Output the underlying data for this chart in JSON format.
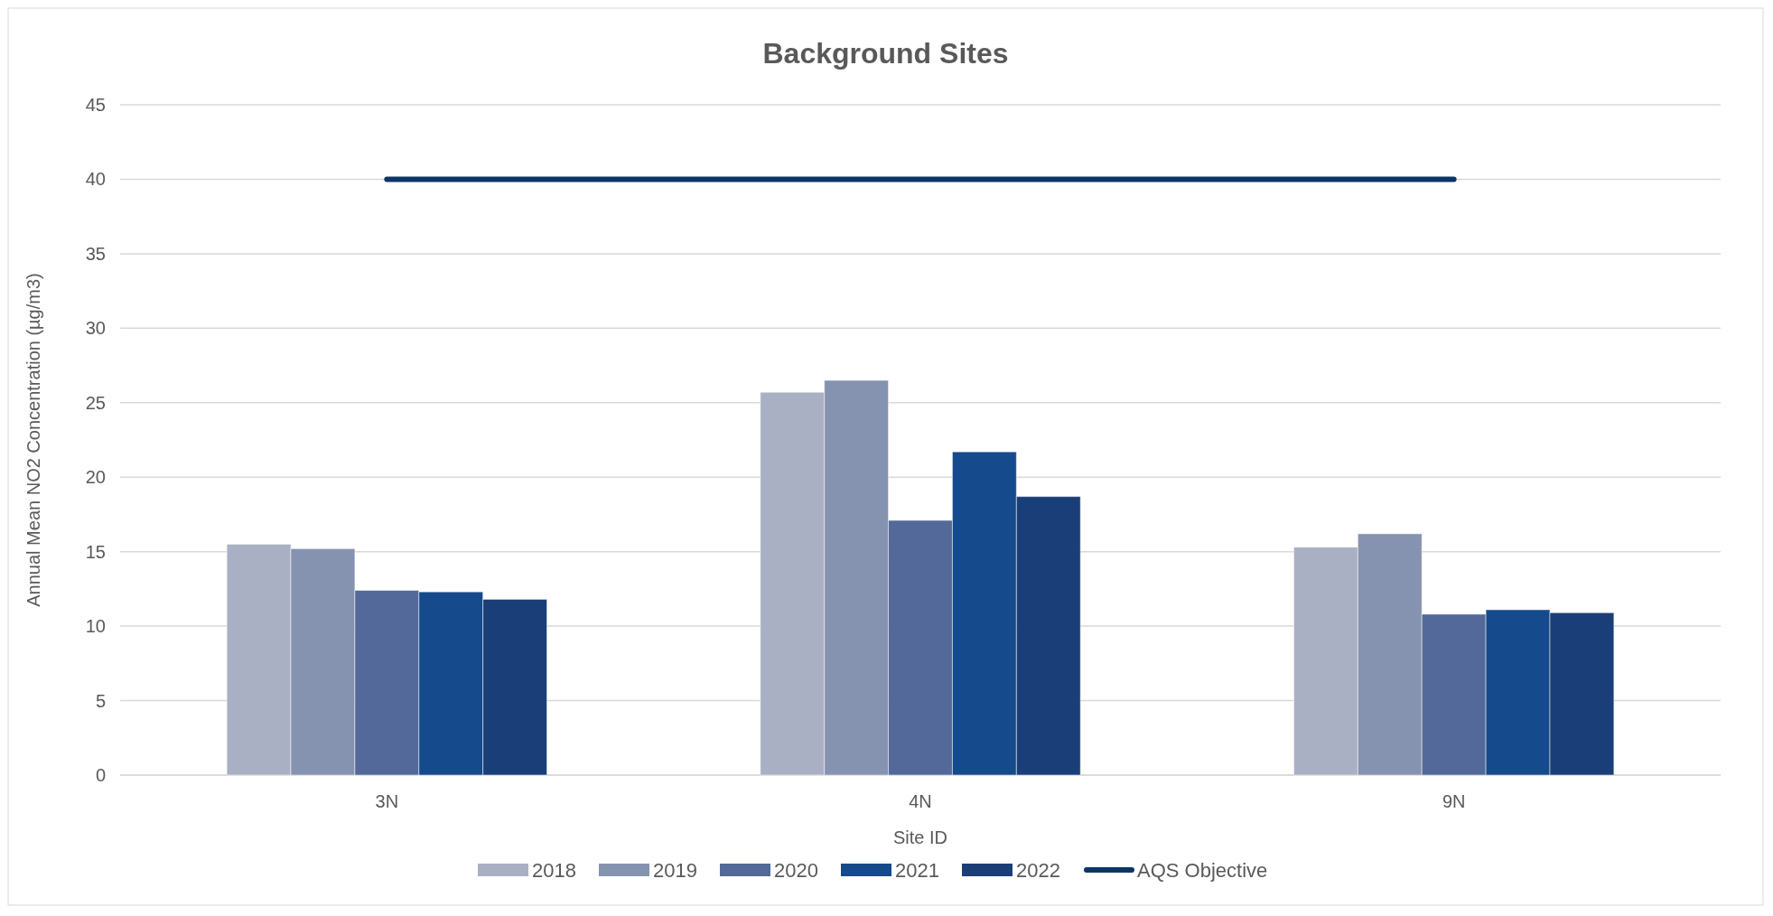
{
  "chart_data": {
    "type": "bar",
    "title": "Background Sites",
    "xlabel": "Site ID",
    "ylabel": "Annual Mean NO2 Concentration (µg/m3)",
    "categories": [
      "3N",
      "4N",
      "9N"
    ],
    "series": [
      {
        "name": "2018",
        "color": "#aab0c4",
        "values": [
          15.5,
          25.7,
          15.3
        ]
      },
      {
        "name": "2019",
        "color": "#8593b0",
        "values": [
          15.2,
          26.5,
          16.2
        ]
      },
      {
        "name": "2020",
        "color": "#52699a",
        "values": [
          12.4,
          17.1,
          10.8
        ]
      },
      {
        "name": "2021",
        "color": "#154a8c",
        "values": [
          12.3,
          21.7,
          11.1
        ]
      },
      {
        "name": "2022",
        "color": "#1a3f78",
        "values": [
          11.8,
          18.7,
          10.9
        ]
      },
      {
        "name": "AQS Objective",
        "type": "line",
        "color": "#0d3565",
        "values": [
          40,
          40,
          40
        ]
      }
    ],
    "ylim": [
      0,
      45
    ],
    "yticks": [
      0,
      5,
      10,
      15,
      20,
      25,
      30,
      35,
      40,
      45
    ],
    "grid": "y",
    "legend": "bottom",
    "marker": "none",
    "line_style": "solid"
  }
}
